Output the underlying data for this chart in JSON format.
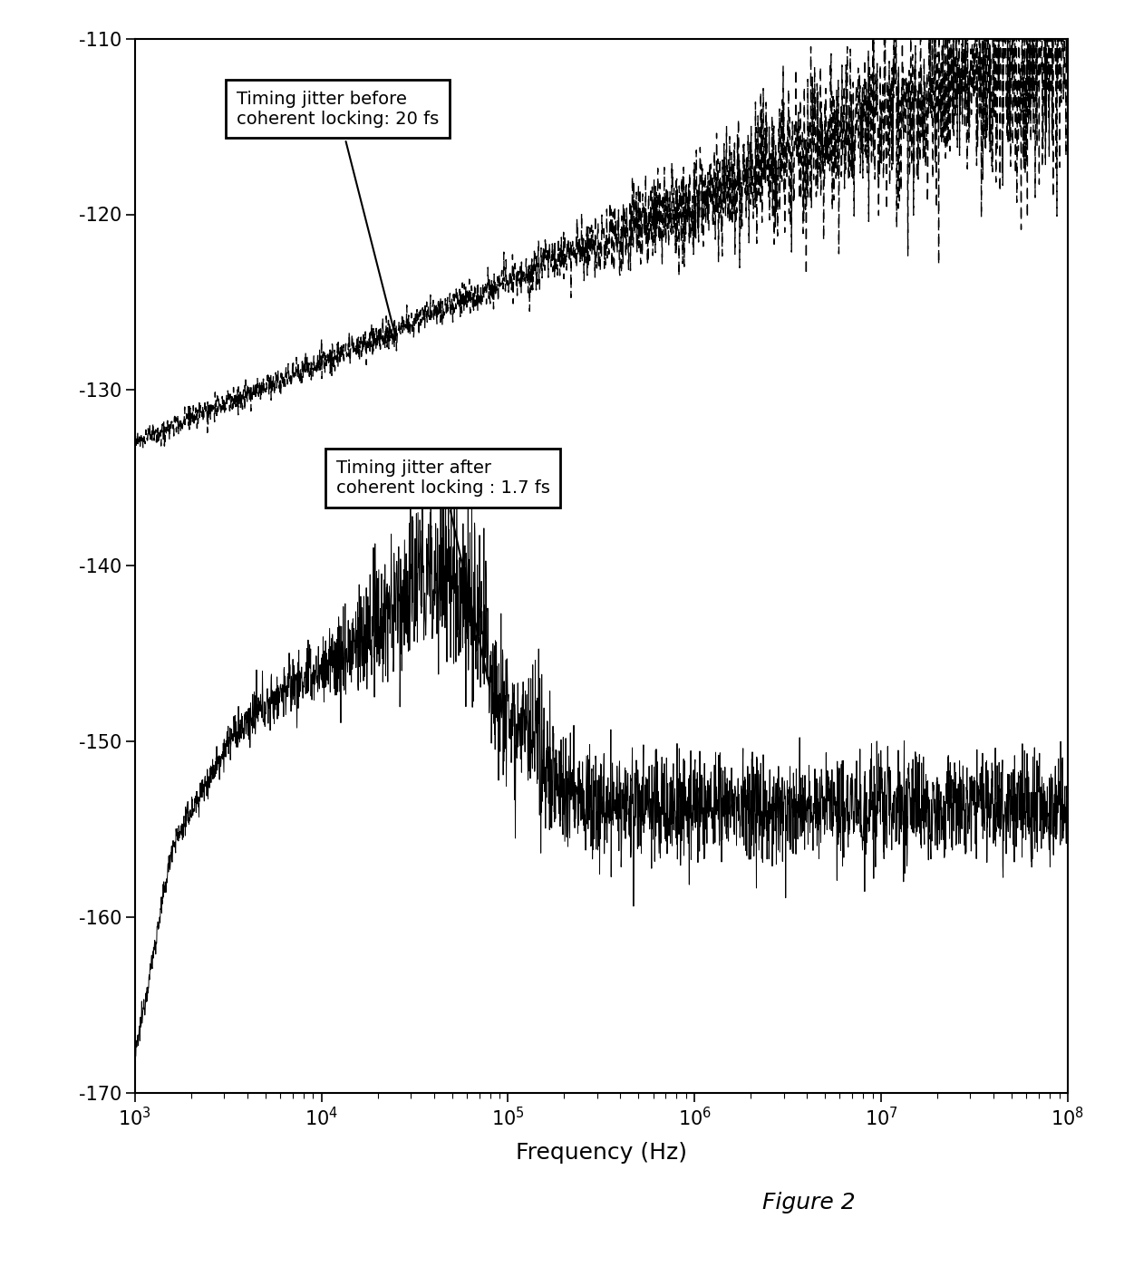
{
  "title": "Figure 2",
  "xlabel": "Frequency (Hz)",
  "xlim_log": [
    3,
    8
  ],
  "ylim": [
    -170,
    -110
  ],
  "yticks": [
    -170,
    -160,
    -150,
    -140,
    -130,
    -120,
    -110
  ],
  "xticks_log": [
    3,
    4,
    5,
    6,
    7,
    8
  ],
  "background_color": "#ffffff",
  "line_color": "#000000",
  "dashed_color": "#000000",
  "annotation1_text": "Timing jitter before\ncoherent locking: 20 fs",
  "annotation2_text": "Timing jitter after\ncoherent locking : 1.7 fs",
  "figsize": [
    12.4,
    14.19
  ],
  "dpi": 100
}
